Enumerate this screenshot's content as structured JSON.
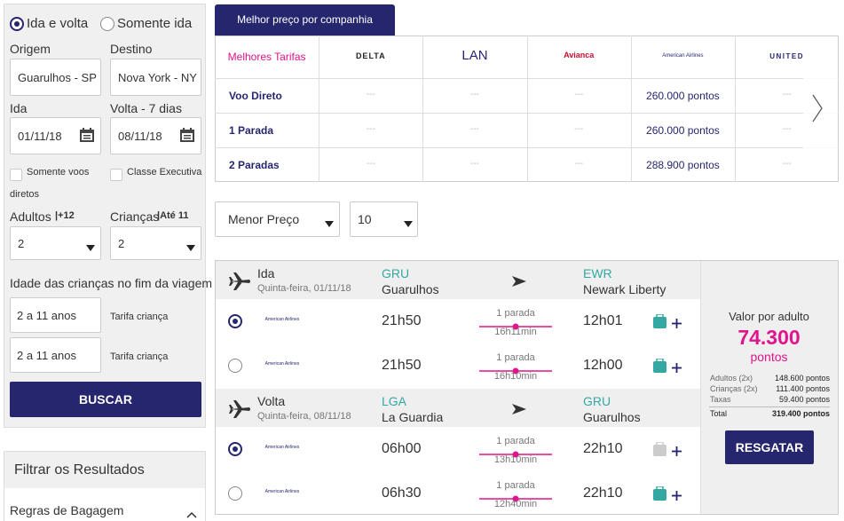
{
  "search": {
    "trip_types": [
      {
        "label": "Ida e volta",
        "selected": true
      },
      {
        "label": "Somente ida",
        "selected": false
      }
    ],
    "origin": {
      "label": "Origem",
      "value": "Guarulhos - SP"
    },
    "destination": {
      "label": "Destino",
      "value": "Nova York - NY"
    },
    "departure": {
      "label": "Ida",
      "value": "01/11/18"
    },
    "return": {
      "label": "Volta - 7 dias",
      "value": "08/11/18"
    },
    "checkboxes": [
      "Somente voos diretos",
      "Classe Executiva"
    ],
    "adults": {
      "label": "Adultos",
      "hint": "|+12",
      "value": "2"
    },
    "children": {
      "label": "Crianças",
      "hint": "|Até 11",
      "value": "2"
    },
    "children_ages": {
      "label": "Idade das crianças no fim da viagem",
      "entries": [
        {
          "value": "2 a 11 anos",
          "note": "Tarifa criança"
        },
        {
          "value": "2 a 11 anos",
          "note": "Tarifa criança"
        }
      ]
    },
    "button": "BUSCAR"
  },
  "filters": {
    "title": "Filtrar os Resultados",
    "items": [
      "Regras de Bagagem"
    ]
  },
  "best_prices": {
    "tab": "Melhor preço por companhia",
    "corner": "Melhores Tarifas",
    "airlines": [
      "DELTA",
      "LAN",
      "Avianca",
      "American Airlines",
      "UNITED"
    ],
    "rows": [
      {
        "label": "Voo Direto",
        "cells": [
          "---",
          "---",
          "---",
          "260.000 pontos",
          "---"
        ]
      },
      {
        "label": "1 Parada",
        "cells": [
          "---",
          "---",
          "---",
          "260.000 pontos",
          "---"
        ]
      },
      {
        "label": "2 Paradas",
        "cells": [
          "---",
          "---",
          "---",
          "288.900 pontos",
          "---"
        ]
      }
    ]
  },
  "sort": {
    "order": "Menor Preço",
    "page_size": "10"
  },
  "legs": [
    {
      "label": "Ida",
      "date": "Quinta-feira, 01/11/18",
      "from": {
        "code": "GRU",
        "city": "Guarulhos"
      },
      "to": {
        "code": "EWR",
        "city": "Newark Liberty"
      },
      "options": [
        {
          "airline": "American Airlines",
          "depart": "21h50",
          "stops": "1 parada",
          "duration": "16h11min",
          "arrive": "12h01",
          "selected": true,
          "baggage": true
        },
        {
          "airline": "American Airlines",
          "depart": "21h50",
          "stops": "1 parada",
          "duration": "16h10min",
          "arrive": "12h00",
          "selected": false,
          "baggage": true
        }
      ]
    },
    {
      "label": "Volta",
      "date": "Quinta-feira, 08/11/18",
      "from": {
        "code": "LGA",
        "city": "La Guardia"
      },
      "to": {
        "code": "GRU",
        "city": "Guarulhos"
      },
      "options": [
        {
          "airline": "American Airlines",
          "depart": "06h00",
          "stops": "1 parada",
          "duration": "13h10min",
          "arrive": "22h10",
          "selected": true,
          "baggage": false
        },
        {
          "airline": "American Airlines",
          "depart": "06h30",
          "stops": "1 parada",
          "duration": "12h40min",
          "arrive": "22h10",
          "selected": false,
          "baggage": true
        }
      ]
    }
  ],
  "price": {
    "label": "Valor por adulto",
    "amount": "74.300",
    "unit": "pontos",
    "breakdown": [
      {
        "label": "Adultos (2x)",
        "value": "148.600 pontos"
      },
      {
        "label": "Crianças (2x)",
        "value": "111.400 pontos"
      },
      {
        "label": "Taxas",
        "value": "59.400 pontos"
      },
      {
        "label": "Total",
        "value": "319.400 pontos"
      }
    ],
    "button": "RESGATAR"
  }
}
